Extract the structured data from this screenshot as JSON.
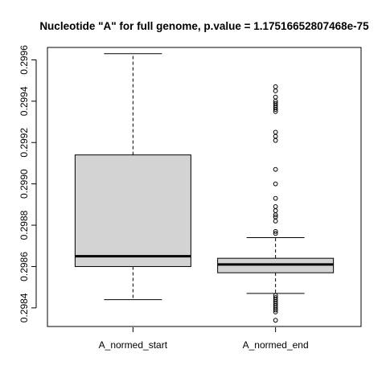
{
  "chart_data": {
    "type": "boxplot",
    "title": "Nucleotide \"A\" for full genome, p.value = 1.17516652807468e-75",
    "xlabel": "",
    "ylabel": "",
    "ylim": [
      0.29831,
      0.29966
    ],
    "yticks": [
      "0.2984",
      "0.2986",
      "0.2988",
      "0.2990",
      "0.2992",
      "0.2994",
      "0.2996"
    ],
    "grid": false,
    "categories": [
      "A_normed_start",
      "A_normed_end"
    ],
    "boxes": [
      {
        "name": "A_normed_start",
        "whisker_low": 0.29844,
        "q1": 0.2986,
        "median": 0.29865,
        "q3": 0.29914,
        "whisker_high": 0.29963,
        "fill": "#d3d3d3",
        "outliers": []
      },
      {
        "name": "A_normed_end",
        "whisker_low": 0.29847,
        "q1": 0.29857,
        "median": 0.29861,
        "q3": 0.29864,
        "whisker_high": 0.29874,
        "fill": "#d3d3d3",
        "outliers": [
          0.29947,
          0.29945,
          0.29942,
          0.2994,
          0.29939,
          0.29938,
          0.29937,
          0.29936,
          0.29935,
          0.29925,
          0.29923,
          0.29921,
          0.29907,
          0.299,
          0.29893,
          0.29889,
          0.29887,
          0.29885,
          0.29884,
          0.29882,
          0.29877,
          0.29876,
          0.29846,
          0.29845,
          0.29844,
          0.29843,
          0.29842,
          0.29841,
          0.2984,
          0.29839,
          0.29838,
          0.29834
        ]
      }
    ]
  }
}
